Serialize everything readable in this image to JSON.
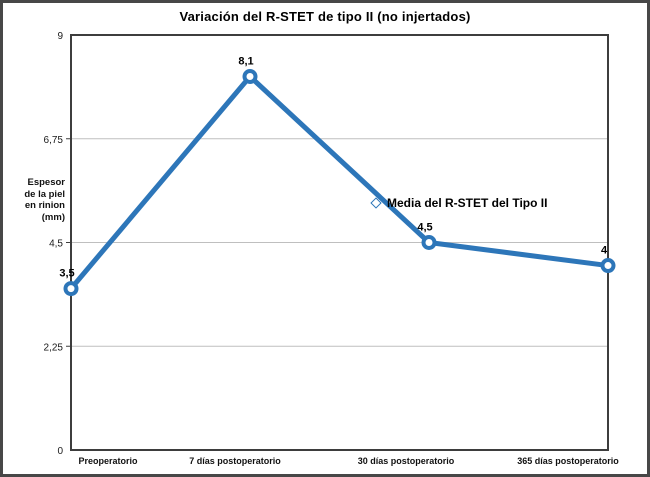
{
  "title": "Variación del R-STET de tipo II (no injertados)",
  "legend": {
    "label": "Media del R-STET del Tipo II",
    "marker": "diamond-icon"
  },
  "y_axis": {
    "label_lines": [
      "Espesor",
      "de la piel",
      "en rinion",
      "(mm)"
    ],
    "tick_labels": [
      "0",
      "2,25",
      "4,5",
      "6,75",
      "9"
    ]
  },
  "chart_data": {
    "type": "line",
    "title": "Variación del R-STET de tipo II (no injertados)",
    "categories": [
      "Preoperatorio",
      "7 días postoperatorio",
      "30 días postoperatorio",
      "365 días postoperatorio"
    ],
    "series": [
      {
        "name": "Media del R-STET del Tipo II",
        "values": [
          3.5,
          8.1,
          4.5,
          4
        ]
      }
    ],
    "point_labels": [
      "3,5",
      "8,1",
      "4,5",
      "4"
    ],
    "ylabel": "Espesor de la piel en rinion (mm)",
    "ylim": [
      0,
      9
    ],
    "yticks": [
      0,
      2.25,
      4.5,
      6.75,
      9
    ],
    "grid": "horizontal",
    "legend_position": "center-right-inside",
    "colors": {
      "line": "#2d76b9",
      "marker_fill": "#ffffff",
      "gridline": "#bfbfbf",
      "plot_border": "#3d3d3d",
      "text": "#000000"
    }
  }
}
